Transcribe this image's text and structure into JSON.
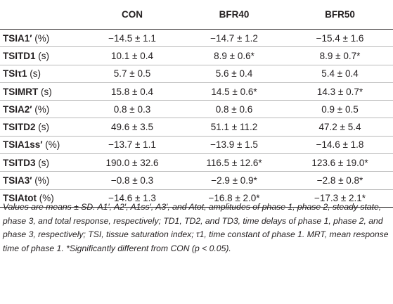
{
  "table": {
    "headers": [
      "",
      "CON",
      "BFR40",
      "BFR50"
    ],
    "rows": [
      {
        "name": "TSIA1′",
        "unit": " (%)",
        "values": [
          "−14.5 ± 1.1",
          "−14.7 ± 1.2",
          "−15.4 ± 1.6"
        ]
      },
      {
        "name": "TSITD1",
        "unit": " (s)",
        "values": [
          "10.1 ± 0.4",
          "8.9 ± 0.6*",
          "8.9 ± 0.7*"
        ]
      },
      {
        "name": "TSIτ1",
        "unit": " (s)",
        "values": [
          "5.7 ± 0.5",
          "5.6 ± 0.4",
          "5.4 ± 0.4"
        ]
      },
      {
        "name": "TSIMRT",
        "unit": " (s)",
        "values": [
          "15.8 ± 0.4",
          "14.5 ± 0.6*",
          "14.3 ± 0.7*"
        ]
      },
      {
        "name": "TSIA2′",
        "unit": " (%)",
        "values": [
          "0.8 ± 0.3",
          "0.8 ± 0.6",
          "0.9 ± 0.5"
        ]
      },
      {
        "name": "TSITD2",
        "unit": " (s)",
        "values": [
          "49.6 ± 3.5",
          "51.1 ± 11.2",
          "47.2 ± 5.4"
        ]
      },
      {
        "name": "TSIA1ss′",
        "unit": " (%)",
        "values": [
          "−13.7 ± 1.1",
          "−13.9 ± 1.5",
          "−14.6 ± 1.8"
        ]
      },
      {
        "name": "TSITD3",
        "unit": " (s)",
        "values": [
          "190.0 ± 32.6",
          "116.5 ± 12.6*",
          "123.6 ± 19.0*"
        ]
      },
      {
        "name": "TSIA3′",
        "unit": " (%)",
        "values": [
          "−0.8 ± 0.3",
          "−2.9 ± 0.9*",
          "−2.8 ± 0.8*"
        ]
      },
      {
        "name": "TSIAtot",
        "unit": " (%)",
        "values": [
          "−14.6 ± 1.3",
          "−16.8 ± 2.0*",
          "−17.3 ± 2.1*"
        ]
      }
    ]
  },
  "footnote": {
    "text": "Values are means ± SD. A1′, A2′, A1ss′, A3′, and Atot, amplitudes of phase 1, phase 2, steady state, phase 3, and total response, respectively; TD1, TD2, and TD3, time delays of phase 1, phase 2, and phase 3, respectively; TSI, tissue saturation index; τ1, time constant of phase 1. MRT, mean response time of phase 1. *Significantly different from CON (p < 0.05)."
  }
}
